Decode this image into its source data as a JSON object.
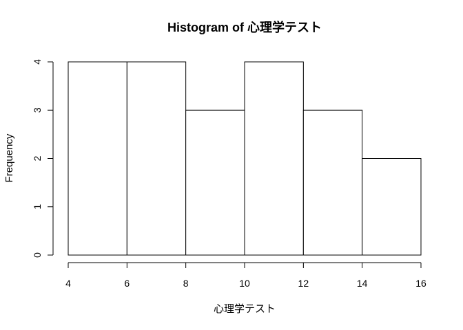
{
  "chart_data": {
    "type": "bar",
    "title": "Histogram of 心理学テスト",
    "xlabel": "心理学テスト",
    "ylabel": "Frequency",
    "bins": [
      {
        "start": 4,
        "end": 6,
        "count": 4
      },
      {
        "start": 6,
        "end": 8,
        "count": 4
      },
      {
        "start": 8,
        "end": 10,
        "count": 3
      },
      {
        "start": 10,
        "end": 12,
        "count": 4
      },
      {
        "start": 12,
        "end": 14,
        "count": 3
      },
      {
        "start": 14,
        "end": 16,
        "count": 2
      }
    ],
    "xlim": [
      4,
      16
    ],
    "ylim": [
      0,
      4
    ],
    "x_ticks": [
      "4",
      "6",
      "8",
      "10",
      "12",
      "14",
      "16"
    ],
    "y_ticks": [
      "0",
      "1",
      "2",
      "3",
      "4"
    ],
    "grid": false,
    "legend": "none",
    "colors": {
      "bar_fill": "#ffffff",
      "bar_stroke": "#000000"
    }
  }
}
